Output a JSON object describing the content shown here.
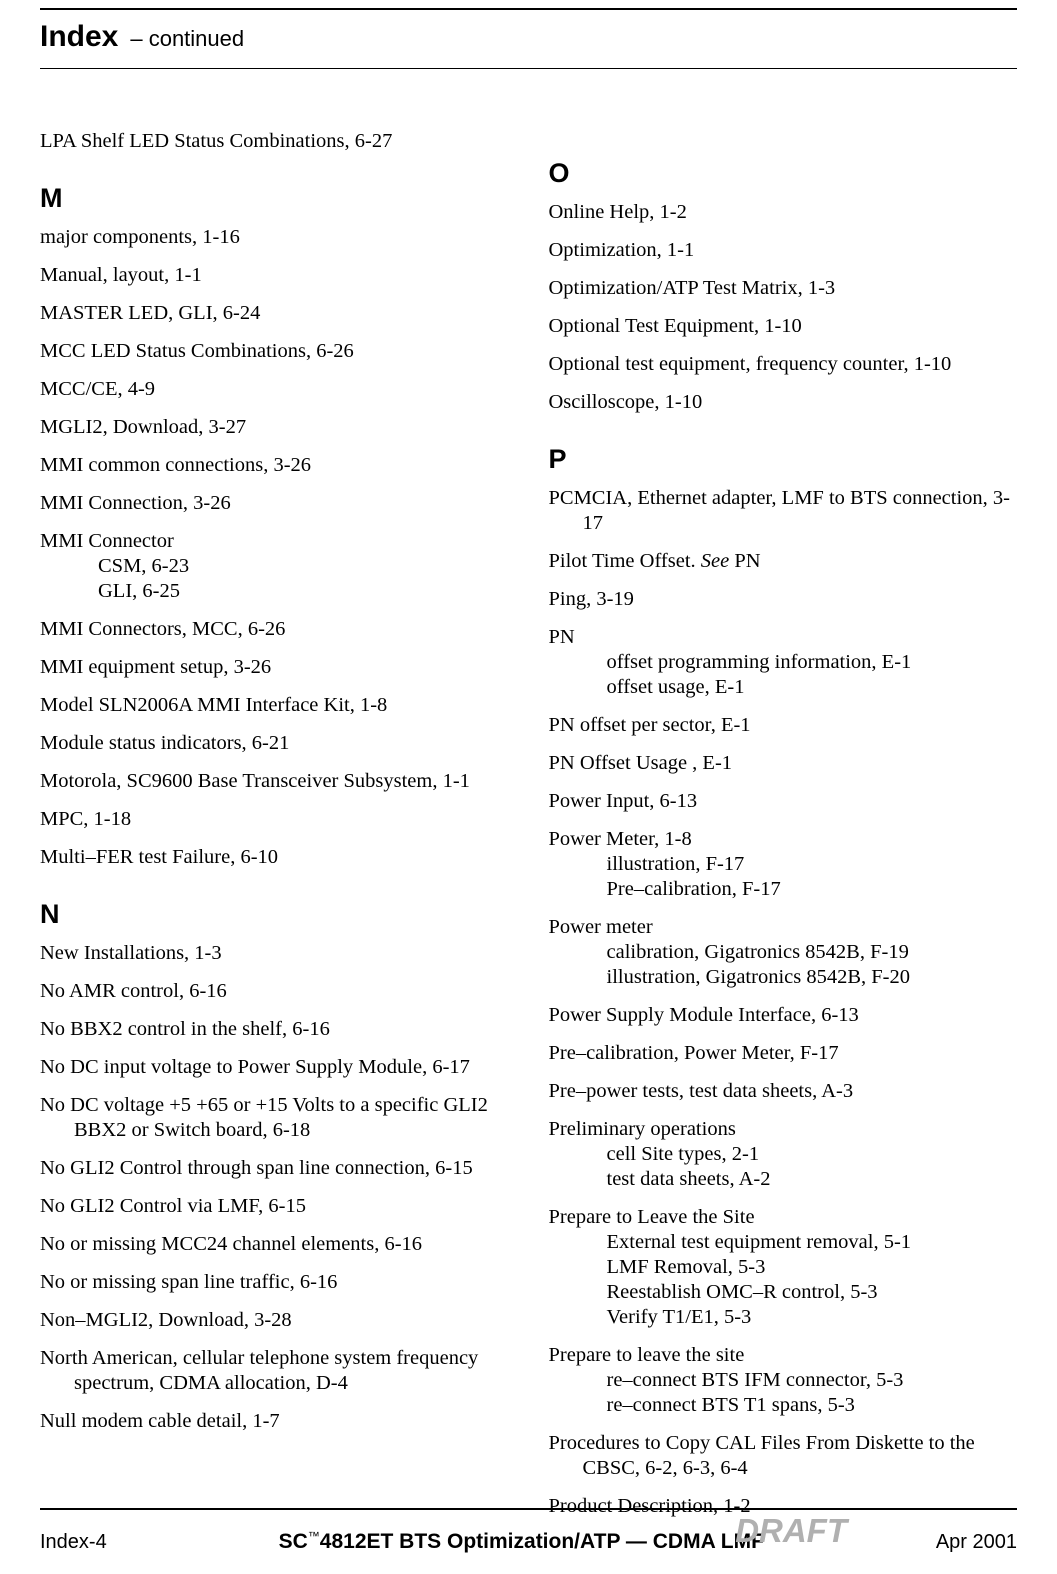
{
  "header": {
    "title": "Index",
    "subtitle": "– continued"
  },
  "left": {
    "pre_entries": [
      {
        "text": "LPA Shelf LED Status Combinations, 6-27"
      }
    ],
    "sections": [
      {
        "letter": "M",
        "entries": [
          {
            "text": "major components, 1-16"
          },
          {
            "text": "Manual, layout, 1-1"
          },
          {
            "text": "MASTER LED, GLI, 6-24"
          },
          {
            "text": "MCC LED Status Combinations, 6-26"
          },
          {
            "text": "MCC/CE, 4-9"
          },
          {
            "text": "MGLI2, Download, 3-27"
          },
          {
            "text": "MMI common connections, 3-26"
          },
          {
            "text": "MMI Connection, 3-26"
          },
          {
            "text": "MMI Connector",
            "subs": [
              "CSM, 6-23",
              "GLI, 6-25"
            ]
          },
          {
            "text": "MMI Connectors, MCC, 6-26"
          },
          {
            "text": "MMI equipment setup, 3-26"
          },
          {
            "text": "Model SLN2006A MMI Interface Kit, 1-8"
          },
          {
            "text": "Module status indicators, 6-21"
          },
          {
            "text": "Motorola, SC9600 Base Transceiver Subsystem, 1-1"
          },
          {
            "text": "MPC, 1-18"
          },
          {
            "text": "Multi–FER test Failure, 6-10"
          }
        ]
      },
      {
        "letter": "N",
        "entries": [
          {
            "text": "New Installations, 1-3"
          },
          {
            "text": "No AMR control, 6-16"
          },
          {
            "text": "No BBX2 control in the shelf, 6-16"
          },
          {
            "text": "No DC input voltage to  Power Supply Module, 6-17"
          },
          {
            "text": "No DC voltage +5 +65 or +15 Volts to a specific GLI2 BBX2 or Switch board, 6-18"
          },
          {
            "text": "No GLI2 Control through span line connection, 6-15"
          },
          {
            "text": "No GLI2 Control via LMF, 6-15"
          },
          {
            "text": "No or missing MCC24 channel elements, 6-16"
          },
          {
            "text": "No or missing span line traffic, 6-16"
          },
          {
            "text": "Non–MGLI2, Download, 3-28"
          },
          {
            "text": "North American, cellular telephone system frequency spectrum, CDMA allocation, D-4"
          },
          {
            "text": "Null modem cable detail, 1-7"
          }
        ]
      }
    ]
  },
  "right": {
    "sections": [
      {
        "letter": "O",
        "entries": [
          {
            "text": "Online Help, 1-2"
          },
          {
            "text": "Optimization, 1-1"
          },
          {
            "text": "Optimization/ATP Test Matrix, 1-3"
          },
          {
            "text": "Optional Test Equipment, 1-10"
          },
          {
            "text": "Optional test equipment, frequency counter, 1-10"
          },
          {
            "text": "Oscilloscope, 1-10"
          }
        ]
      },
      {
        "letter": "P",
        "entries": [
          {
            "text": "PCMCIA, Ethernet adapter, LMF to BTS connection, 3-17"
          },
          {
            "text_pre": "Pilot Time Offset. ",
            "italic": "See",
            "text_post": " PN"
          },
          {
            "text": "Ping, 3-19"
          },
          {
            "text": "PN",
            "subs": [
              "offset programming information, E-1",
              "offset usage, E-1"
            ]
          },
          {
            "text": "PN offset per sector, E-1"
          },
          {
            "text": "PN Offset Usage , E-1"
          },
          {
            "text": "Power Input, 6-13"
          },
          {
            "text": "Power Meter, 1-8",
            "subs": [
              "illustration, F-17",
              "Pre–calibration, F-17"
            ]
          },
          {
            "text": "Power meter",
            "subs": [
              "calibration, Gigatronics 8542B, F-19",
              "illustration, Gigatronics 8542B, F-20"
            ]
          },
          {
            "text": "Power Supply Module Interface, 6-13"
          },
          {
            "text": "Pre–calibration, Power Meter, F-17"
          },
          {
            "text": "Pre–power tests, test data sheets, A-3"
          },
          {
            "text": "Preliminary operations",
            "subs": [
              "cell Site types, 2-1",
              "test data sheets, A-2"
            ]
          },
          {
            "text": "Prepare to Leave the Site",
            "subs": [
              "External test equipment removal, 5-1",
              "LMF Removal, 5-3",
              "Reestablish OMC–R control, 5-3",
              "Verify T1/E1, 5-3"
            ]
          },
          {
            "text": "Prepare to leave the site",
            "subs": [
              "re–connect BTS IFM connector, 5-3",
              "re–connect BTS T1 spans, 5-3"
            ]
          },
          {
            "text": "Procedures to Copy CAL Files From Diskette to the CBSC, 6-2, 6-3, 6-4"
          },
          {
            "text": "Product Description, 1-2"
          }
        ]
      }
    ]
  },
  "footer": {
    "left": "Index-4",
    "center_pre": "SC",
    "center_tm": "™",
    "center_post": "4812ET BTS Optimization/ATP — CDMA LMF",
    "right": "Apr 2001",
    "watermark": "DRAFT"
  }
}
